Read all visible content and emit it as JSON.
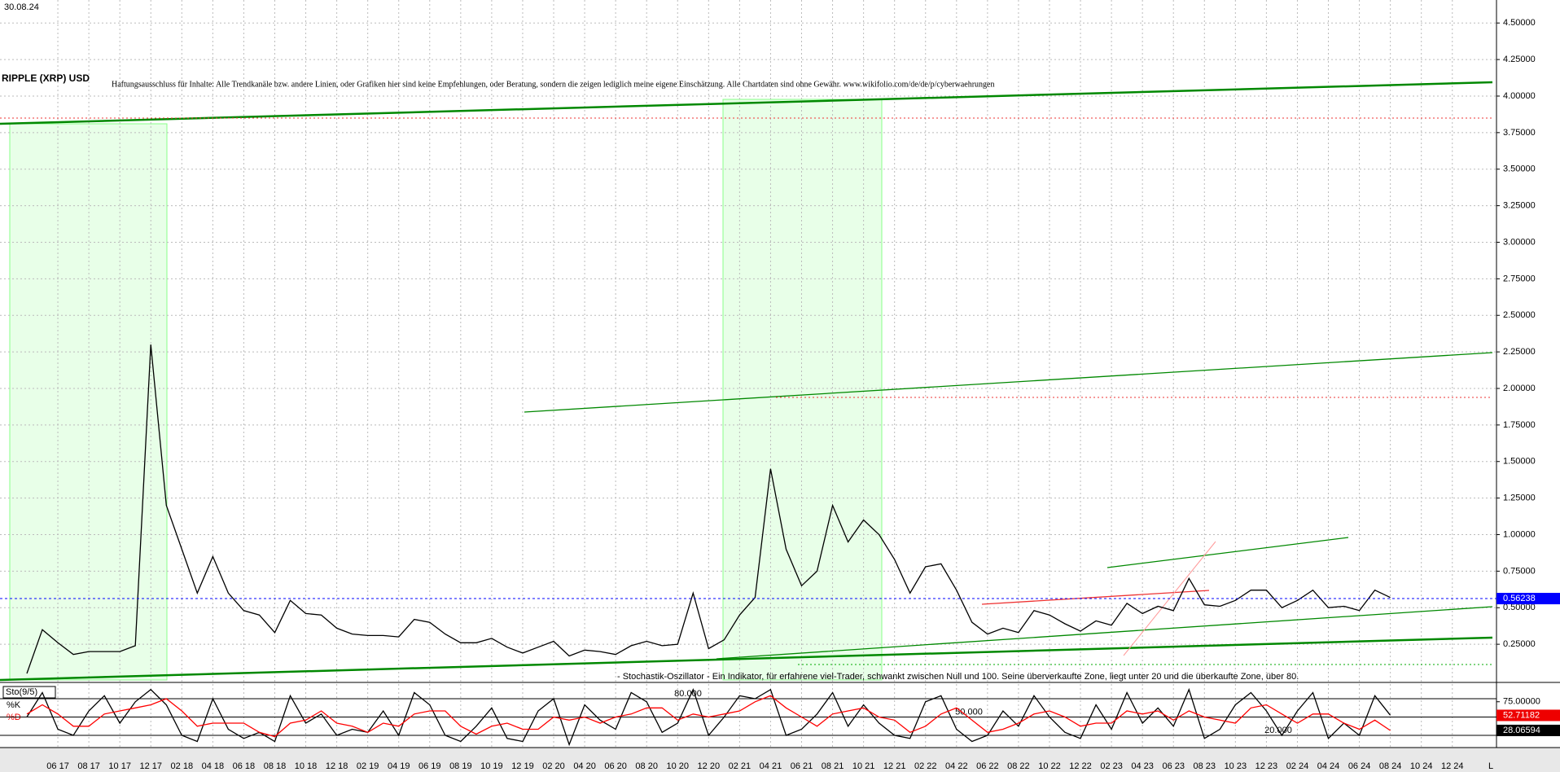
{
  "chart_data": {
    "type": "line",
    "title": "RIPPLE (XRP) USD",
    "date": "30.08.24",
    "disclaimer": "Haftungsausschluss für Inhalte: Alle Trendkanäle bzw. andere Linien, oder Grafiken hier sind keine Empfehlungen, oder Beratung, sondern die zeigen lediglich meine eigene Einschätzung. Alle Chartdaten sind ohne Gewähr. www.wikifolio.com/de/de/p/cyberwaehrungen",
    "annotation": "- Stochastik-Oszillator - Ein Indikator, für erfahrene viel-Trader, schwankt zwischen Null und 100. Seine überverkaufte Zone, liegt unter 20 und die überkaufte Zone, über 80.",
    "categories": [
      null,
      null,
      "06 17",
      null,
      "08 17",
      null,
      "10 17",
      null,
      "12 17",
      null,
      "02 18",
      null,
      "04 18",
      null,
      "06 18",
      null,
      "08 18",
      null,
      "10 18",
      null,
      "12 18",
      null,
      "02 19",
      null,
      "04 19",
      null,
      "06 19",
      null,
      "08 19",
      null,
      "10 19",
      null,
      "12 19",
      null,
      "02 20",
      null,
      "04 20",
      null,
      "06 20",
      null,
      "08 20",
      null,
      "10 20",
      null,
      "12 20",
      null,
      "02 21",
      null,
      "04 21",
      null,
      "06 21",
      null,
      "08 21",
      null,
      "10 21",
      null,
      "12 21",
      null,
      "02 22",
      null,
      "04 22",
      null,
      "06 22",
      null,
      "08 22",
      null,
      "10 22",
      null,
      "12 22",
      null,
      "02 23",
      null,
      "04 23",
      null,
      "06 23",
      null,
      "08 23",
      null,
      "10 23",
      null,
      "12 23",
      null,
      "02 24",
      null,
      "04 24",
      null,
      "06 24",
      null,
      "08 24",
      null,
      "10 24",
      null,
      "12 24"
    ],
    "x_axis_end_label": "L",
    "series": [
      {
        "name": "XRP",
        "color": "#000000",
        "values": [
          0.05,
          0.35,
          0.26,
          0.18,
          0.2,
          0.2,
          0.2,
          0.24,
          2.3,
          1.2,
          0.9,
          0.6,
          0.85,
          0.6,
          0.48,
          0.45,
          0.33,
          0.55,
          0.46,
          0.45,
          0.36,
          0.32,
          0.31,
          0.31,
          0.3,
          0.42,
          0.4,
          0.32,
          0.26,
          0.26,
          0.29,
          0.23,
          0.19,
          0.23,
          0.27,
          0.17,
          0.21,
          0.2,
          0.18,
          0.24,
          0.27,
          0.24,
          0.25,
          0.6,
          0.22,
          0.28,
          0.45,
          0.57,
          1.45,
          0.9,
          0.65,
          0.75,
          1.2,
          0.95,
          1.1,
          1.0,
          0.83,
          0.6,
          0.78,
          0.8,
          0.62,
          0.4,
          0.32,
          0.36,
          0.33,
          0.48,
          0.45,
          0.39,
          0.34,
          0.41,
          0.38,
          0.53,
          0.46,
          0.51,
          0.48,
          0.7,
          0.52,
          0.51,
          0.55,
          0.62,
          0.62,
          0.5,
          0.55,
          0.62,
          0.5,
          0.51,
          0.48,
          0.62,
          0.57,
          null,
          null,
          null,
          null
        ]
      }
    ],
    "last_price": {
      "value": 0.56238,
      "label": "0.56238",
      "color": "#0000ff"
    },
    "ylim": [
      0,
      4.65
    ],
    "yticks": [
      {
        "value": 0.25,
        "label": "0.25000"
      },
      {
        "value": 0.5,
        "label": "0.50000"
      },
      {
        "value": 0.75,
        "label": "0.75000"
      },
      {
        "value": 1,
        "label": "1.00000"
      },
      {
        "value": 1.25,
        "label": "1.25000"
      },
      {
        "value": 1.5,
        "label": "1.50000"
      },
      {
        "value": 1.75,
        "label": "1.75000"
      },
      {
        "value": 2,
        "label": "2.00000"
      },
      {
        "value": 2.25,
        "label": "2.25000"
      },
      {
        "value": 2.5,
        "label": "2.50000"
      },
      {
        "value": 2.75,
        "label": "2.75000"
      },
      {
        "value": 3,
        "label": "3.00000"
      },
      {
        "value": 3.25,
        "label": "3.25000"
      },
      {
        "value": 3.5,
        "label": "3.50000"
      },
      {
        "value": 3.75,
        "label": "3.75000"
      },
      {
        "value": 4,
        "label": "4.00000"
      },
      {
        "value": 4.25,
        "label": "4.25000"
      },
      {
        "value": 4.5,
        "label": "4.50000"
      }
    ],
    "grid": true,
    "stochastic": {
      "title": "Sto(9/5)",
      "ylim": [
        0,
        100
      ],
      "yticks": [
        {
          "value": 75,
          "label": "75.00000"
        }
      ],
      "levels": [
        {
          "value": 80,
          "label": "80.000"
        },
        {
          "value": 50,
          "label": "50.000"
        },
        {
          "value": 20,
          "label": "20.000"
        }
      ],
      "series": [
        {
          "name": "%K",
          "color": "#000000",
          "last": 52.71182,
          "values": [
            50,
            90,
            30,
            20,
            60,
            85,
            40,
            75,
            95,
            70,
            20,
            10,
            80,
            30,
            15,
            25,
            10,
            85,
            40,
            55,
            20,
            30,
            25,
            60,
            20,
            90,
            70,
            20,
            10,
            35,
            65,
            15,
            10,
            60,
            80,
            5,
            70,
            45,
            30,
            90,
            75,
            25,
            40,
            95,
            20,
            50,
            85,
            80,
            95,
            20,
            30,
            55,
            90,
            35,
            70,
            40,
            20,
            15,
            75,
            85,
            30,
            10,
            20,
            60,
            35,
            85,
            50,
            25,
            15,
            70,
            30,
            90,
            40,
            65,
            35,
            95,
            15,
            30,
            70,
            90,
            60,
            20,
            60,
            90,
            15,
            40,
            20,
            85,
            53,
            null,
            null,
            null,
            null
          ]
        },
        {
          "name": "%D",
          "color": "#ff0000",
          "last": 28.06594,
          "values": [
            55,
            70,
            55,
            35,
            35,
            55,
            60,
            65,
            70,
            80,
            60,
            35,
            40,
            40,
            40,
            25,
            18,
            40,
            45,
            60,
            40,
            35,
            25,
            40,
            35,
            55,
            60,
            60,
            35,
            22,
            35,
            40,
            30,
            30,
            50,
            45,
            50,
            40,
            50,
            55,
            65,
            65,
            45,
            55,
            50,
            55,
            60,
            75,
            85,
            65,
            50,
            35,
            55,
            60,
            65,
            50,
            45,
            25,
            35,
            55,
            65,
            45,
            25,
            30,
            40,
            55,
            60,
            50,
            35,
            40,
            40,
            60,
            55,
            60,
            45,
            60,
            50,
            45,
            40,
            65,
            70,
            55,
            40,
            55,
            55,
            40,
            30,
            45,
            28,
            null,
            null,
            null,
            null
          ]
        }
      ]
    }
  }
}
